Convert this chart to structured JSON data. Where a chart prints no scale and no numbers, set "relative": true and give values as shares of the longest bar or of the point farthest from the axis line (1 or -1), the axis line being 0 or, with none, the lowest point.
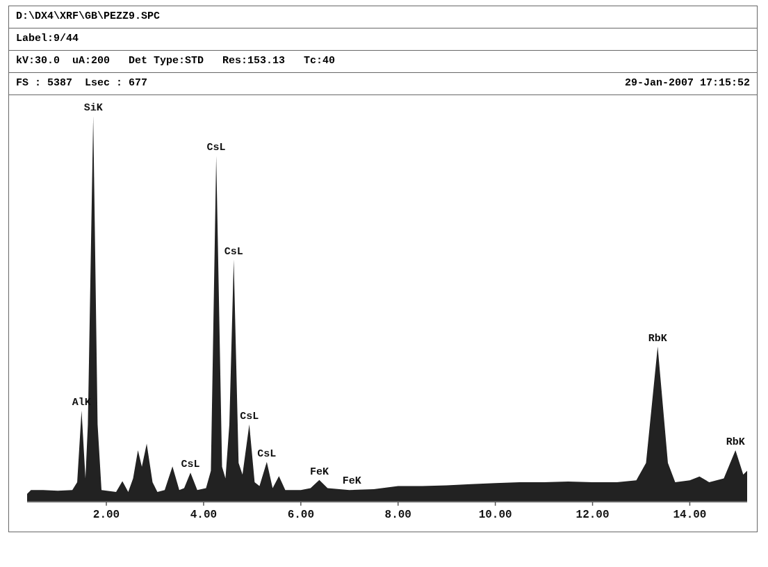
{
  "chart_data": {
    "type": "area",
    "title": "D:\\DX4\\XRF\\GB\\PEZZ9.SPC",
    "relative": true,
    "tick_labels": "x",
    "grid": false,
    "legend": false,
    "xlim": [
      0.37,
      15.18
    ],
    "xticks": [
      {
        "value": 2,
        "label": "2.00"
      },
      {
        "value": 4,
        "label": "4.00"
      },
      {
        "value": 6,
        "label": "6.00"
      },
      {
        "value": 8,
        "label": "8.00"
      },
      {
        "value": 10,
        "label": "10.00"
      },
      {
        "value": 12,
        "label": "12.00"
      },
      {
        "value": 14,
        "label": "14.00"
      }
    ],
    "annotations": [
      "Label:9/44",
      "kV:30.0  uA:200   Det Type:STD   Res:153.13   Tc:40",
      "FS : 5387  Lsec : 677",
      "29-Jan-2007 17:15:52",
      {
        "text": "AlK",
        "x": 1.49,
        "y": 0.236
      },
      {
        "text": "SiK",
        "x": 1.73,
        "y": 1
      },
      {
        "text": "CsL",
        "x": 3.73,
        "y": 0.075
      },
      {
        "text": "CsL",
        "x": 4.26,
        "y": 0.897
      },
      {
        "text": "CsL",
        "x": 4.62,
        "y": 0.628
      },
      {
        "text": "CsL",
        "x": 4.94,
        "y": 0.2
      },
      {
        "text": "CsL",
        "x": 5.3,
        "y": 0.103
      },
      {
        "text": "FeK",
        "x": 6.38,
        "y": 0.056
      },
      {
        "text": "FeK",
        "x": 7.05,
        "y": 0.032
      },
      {
        "text": "RbK",
        "x": 13.34,
        "y": 0.402
      },
      {
        "text": "RbK",
        "x": 14.94,
        "y": 0.133
      }
    ],
    "series": [
      {
        "color": "#222222",
        "x": [
          0.37,
          0.45,
          0.7,
          1.0,
          1.3,
          1.4,
          1.49,
          1.57,
          1.62,
          1.73,
          1.82,
          1.9,
          2.2,
          2.33,
          2.45,
          2.55,
          2.65,
          2.73,
          2.83,
          2.95,
          3.05,
          3.2,
          3.36,
          3.5,
          3.6,
          3.73,
          3.87,
          4.05,
          4.15,
          4.26,
          4.38,
          4.45,
          4.53,
          4.62,
          4.72,
          4.8,
          4.94,
          5.05,
          5.15,
          5.3,
          5.42,
          5.55,
          5.68,
          6.0,
          6.2,
          6.38,
          6.55,
          7.0,
          7.5,
          8.0,
          8.5,
          9.0,
          9.5,
          10.0,
          10.5,
          11.0,
          11.5,
          12.0,
          12.5,
          12.9,
          13.1,
          13.34,
          13.55,
          13.7,
          14.0,
          14.2,
          14.4,
          14.7,
          14.94,
          15.1,
          15.18
        ],
        "values": [
          0.02,
          0.03,
          0.03,
          0.028,
          0.03,
          0.05,
          0.236,
          0.06,
          0.2,
          1,
          0.2,
          0.03,
          0.025,
          0.053,
          0.025,
          0.06,
          0.133,
          0.09,
          0.15,
          0.05,
          0.025,
          0.03,
          0.091,
          0.03,
          0.035,
          0.075,
          0.03,
          0.035,
          0.08,
          0.897,
          0.09,
          0.06,
          0.2,
          0.628,
          0.1,
          0.07,
          0.2,
          0.05,
          0.04,
          0.103,
          0.035,
          0.066,
          0.03,
          0.03,
          0.035,
          0.056,
          0.035,
          0.03,
          0.032,
          0.04,
          0.04,
          0.042,
          0.045,
          0.048,
          0.05,
          0.05,
          0.052,
          0.05,
          0.05,
          0.055,
          0.1,
          0.402,
          0.1,
          0.05,
          0.055,
          0.065,
          0.05,
          0.06,
          0.133,
          0.07,
          0.08
        ]
      }
    ]
  }
}
